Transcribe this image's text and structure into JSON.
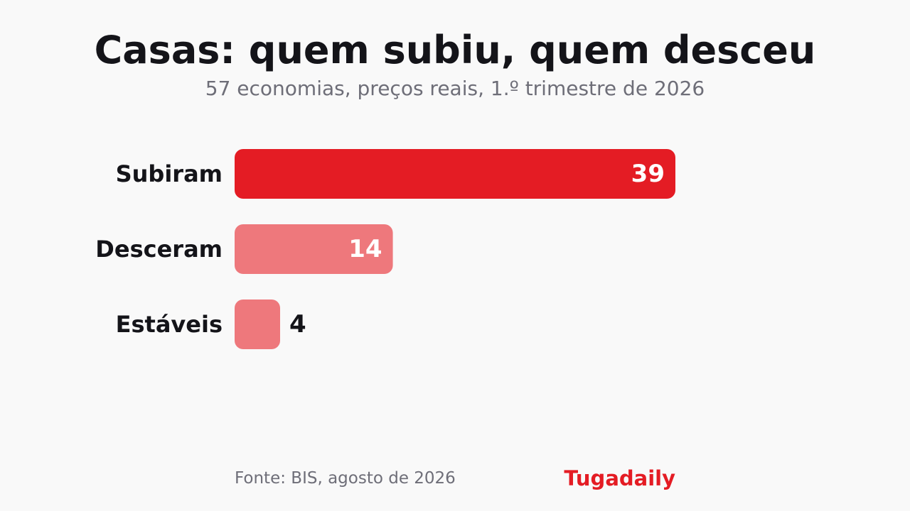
{
  "title": "Casas: quem subiu, quem desceu",
  "subtitle": "57 economias, preços reais, 1.º trimestre de 2026",
  "source": "Fonte: BIS, agosto de 2026",
  "brand": "Tugadaily",
  "colors": {
    "primary": "#e41c24",
    "secondary": "#ee787c",
    "label_dark": "#141419",
    "label_light": "#ffffff",
    "muted": "#6e6e78",
    "background": "#f9f9f9"
  },
  "chart_data": {
    "type": "bar",
    "orientation": "horizontal",
    "categories": [
      "Subiram",
      "Desceram",
      "Estáveis"
    ],
    "values": [
      39,
      14,
      4
    ],
    "xlim": [
      0,
      39
    ],
    "grid": false,
    "legend": "none",
    "bar_colors": [
      "#e41c24",
      "#ee787c",
      "#ee787c"
    ]
  }
}
